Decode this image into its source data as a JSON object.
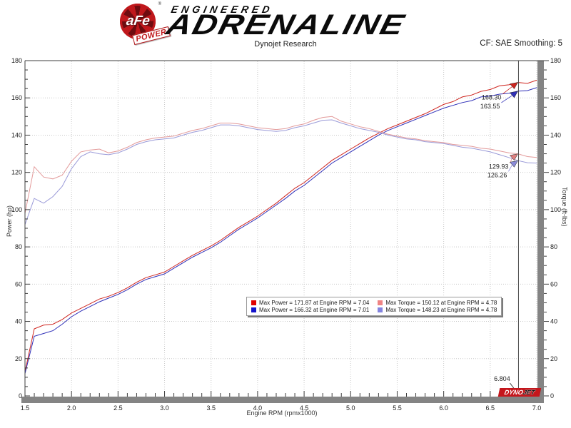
{
  "header": {
    "afe": "aFe",
    "power": "POWER",
    "reg": "®",
    "engineered": "ENGINEERED",
    "adrenaline": "ADRENALINE",
    "subtitle": "Dynojet Research",
    "cf_label": "CF: SAE Smoothing: 5"
  },
  "chart_data": {
    "type": "line",
    "xlabel": "Engine RPM (rpmx1000)",
    "ylabel_left": "Power (hp)",
    "ylabel_right": "Torque (ft-lbs)",
    "xlim": [
      1.5,
      7.0
    ],
    "ylim": [
      0,
      180
    ],
    "x_major_step": 0.5,
    "x_minor_step": 0.1,
    "y_major_step": 20,
    "y_minor_step": 5,
    "grid": "dotted",
    "legend": {
      "position": "bottom-center",
      "entries": [
        {
          "color": "#e00000",
          "label": "Max Power = 171.87 at Engine RPM = 7.04"
        },
        {
          "color": "#1414cc",
          "label": "Max Power = 166.32 at Engine RPM = 7.01"
        },
        {
          "color": "#ef8484",
          "label": "Max Torque = 150.12 at Engine RPM = 4.78"
        },
        {
          "color": "#8484e0",
          "label": "Max Torque = 148.23 at Engine RPM = 4.78"
        }
      ]
    },
    "series": [
      {
        "name": "power-red",
        "color": "#cf2620",
        "axis": "left",
        "points": [
          [
            1.5,
            13
          ],
          [
            1.6,
            36
          ],
          [
            1.7,
            38
          ],
          [
            1.8,
            38.5
          ],
          [
            1.9,
            41
          ],
          [
            2.0,
            44.5
          ],
          [
            2.1,
            47
          ],
          [
            2.2,
            49.5
          ],
          [
            2.3,
            52
          ],
          [
            2.4,
            53.5
          ],
          [
            2.5,
            55.5
          ],
          [
            2.6,
            58
          ],
          [
            2.7,
            61
          ],
          [
            2.8,
            63.5
          ],
          [
            2.9,
            65
          ],
          [
            3.0,
            66.5
          ],
          [
            3.1,
            69.5
          ],
          [
            3.2,
            72.5
          ],
          [
            3.3,
            75.5
          ],
          [
            3.4,
            78
          ],
          [
            3.5,
            80.5
          ],
          [
            3.6,
            83.5
          ],
          [
            3.7,
            87
          ],
          [
            3.8,
            90.5
          ],
          [
            3.9,
            93.5
          ],
          [
            4.0,
            96.5
          ],
          [
            4.1,
            100
          ],
          [
            4.2,
            103.5
          ],
          [
            4.3,
            107.5
          ],
          [
            4.4,
            111.5
          ],
          [
            4.5,
            114.5
          ],
          [
            4.6,
            118.5
          ],
          [
            4.7,
            122.5
          ],
          [
            4.8,
            126.5
          ],
          [
            4.9,
            129.5
          ],
          [
            5.0,
            132.5
          ],
          [
            5.1,
            135.5
          ],
          [
            5.2,
            138.5
          ],
          [
            5.3,
            141
          ],
          [
            5.4,
            143.5
          ],
          [
            5.5,
            145.5
          ],
          [
            5.6,
            147.5
          ],
          [
            5.7,
            149.5
          ],
          [
            5.8,
            151.5
          ],
          [
            5.9,
            154
          ],
          [
            6.0,
            156.5
          ],
          [
            6.1,
            158
          ],
          [
            6.2,
            160.5
          ],
          [
            6.3,
            161.5
          ],
          [
            6.4,
            163.5
          ],
          [
            6.5,
            164.5
          ],
          [
            6.6,
            166.5
          ],
          [
            6.7,
            167
          ],
          [
            6.8,
            168.3
          ],
          [
            6.9,
            167.8
          ],
          [
            7.0,
            169.5
          ]
        ]
      },
      {
        "name": "power-blue",
        "color": "#3030b8",
        "axis": "left",
        "points": [
          [
            1.5,
            12
          ],
          [
            1.6,
            32
          ],
          [
            1.7,
            33.5
          ],
          [
            1.8,
            35
          ],
          [
            1.9,
            38.5
          ],
          [
            2.0,
            42.5
          ],
          [
            2.1,
            45.5
          ],
          [
            2.2,
            48
          ],
          [
            2.3,
            50.5
          ],
          [
            2.4,
            52.5
          ],
          [
            2.5,
            54.5
          ],
          [
            2.6,
            57
          ],
          [
            2.7,
            60
          ],
          [
            2.8,
            62.5
          ],
          [
            2.9,
            64
          ],
          [
            3.0,
            65.5
          ],
          [
            3.1,
            68.5
          ],
          [
            3.2,
            71.5
          ],
          [
            3.3,
            74.5
          ],
          [
            3.4,
            77
          ],
          [
            3.5,
            79.5
          ],
          [
            3.6,
            82.5
          ],
          [
            3.7,
            86
          ],
          [
            3.8,
            89.5
          ],
          [
            3.9,
            92.5
          ],
          [
            4.0,
            95.5
          ],
          [
            4.1,
            99
          ],
          [
            4.2,
            102.5
          ],
          [
            4.3,
            106
          ],
          [
            4.4,
            110
          ],
          [
            4.5,
            113
          ],
          [
            4.6,
            117
          ],
          [
            4.7,
            121
          ],
          [
            4.8,
            125
          ],
          [
            4.9,
            128
          ],
          [
            5.0,
            131
          ],
          [
            5.1,
            134
          ],
          [
            5.2,
            137
          ],
          [
            5.3,
            140
          ],
          [
            5.4,
            142.5
          ],
          [
            5.5,
            144.5
          ],
          [
            5.6,
            146.5
          ],
          [
            5.7,
            148.5
          ],
          [
            5.8,
            150.5
          ],
          [
            5.9,
            152.5
          ],
          [
            6.0,
            154.5
          ],
          [
            6.1,
            156
          ],
          [
            6.2,
            157.5
          ],
          [
            6.3,
            158.5
          ],
          [
            6.4,
            160.5
          ],
          [
            6.5,
            161
          ],
          [
            6.6,
            162
          ],
          [
            6.7,
            162.5
          ],
          [
            6.8,
            163.6
          ],
          [
            6.9,
            163.9
          ],
          [
            7.0,
            165.5
          ]
        ]
      },
      {
        "name": "torque-pink",
        "color": "#e39a9a",
        "axis": "right",
        "points": [
          [
            1.5,
            98
          ],
          [
            1.6,
            123
          ],
          [
            1.7,
            117.5
          ],
          [
            1.8,
            116.5
          ],
          [
            1.9,
            118.5
          ],
          [
            2.0,
            126
          ],
          [
            2.1,
            131
          ],
          [
            2.2,
            132
          ],
          [
            2.3,
            132.5
          ],
          [
            2.4,
            130.5
          ],
          [
            2.5,
            131.5
          ],
          [
            2.6,
            133.5
          ],
          [
            2.7,
            136
          ],
          [
            2.8,
            137.5
          ],
          [
            2.9,
            138.5
          ],
          [
            3.0,
            139
          ],
          [
            3.1,
            139.5
          ],
          [
            3.2,
            141
          ],
          [
            3.3,
            142.5
          ],
          [
            3.4,
            143.5
          ],
          [
            3.5,
            145
          ],
          [
            3.6,
            146.5
          ],
          [
            3.7,
            146.5
          ],
          [
            3.8,
            146
          ],
          [
            3.9,
            145
          ],
          [
            4.0,
            144
          ],
          [
            4.1,
            143.5
          ],
          [
            4.2,
            143
          ],
          [
            4.3,
            143.5
          ],
          [
            4.4,
            145
          ],
          [
            4.5,
            146
          ],
          [
            4.6,
            148
          ],
          [
            4.7,
            149.5
          ],
          [
            4.8,
            150
          ],
          [
            4.9,
            147.5
          ],
          [
            5.0,
            146
          ],
          [
            5.1,
            144.5
          ],
          [
            5.2,
            143.5
          ],
          [
            5.3,
            142
          ],
          [
            5.4,
            140.5
          ],
          [
            5.5,
            139.5
          ],
          [
            5.6,
            138.5
          ],
          [
            5.7,
            138
          ],
          [
            5.8,
            137
          ],
          [
            5.9,
            136.5
          ],
          [
            6.0,
            136
          ],
          [
            6.1,
            135
          ],
          [
            6.2,
            134.5
          ],
          [
            6.3,
            134
          ],
          [
            6.4,
            133
          ],
          [
            6.5,
            132.5
          ],
          [
            6.6,
            131.5
          ],
          [
            6.7,
            130.5
          ],
          [
            6.8,
            129.9
          ],
          [
            6.9,
            128.5
          ],
          [
            7.0,
            128
          ]
        ]
      },
      {
        "name": "torque-lightblue",
        "color": "#9a9ad8",
        "axis": "right",
        "points": [
          [
            1.5,
            92
          ],
          [
            1.6,
            106
          ],
          [
            1.7,
            103.5
          ],
          [
            1.8,
            107
          ],
          [
            1.9,
            112.5
          ],
          [
            2.0,
            122
          ],
          [
            2.1,
            128.5
          ],
          [
            2.2,
            131
          ],
          [
            2.3,
            130
          ],
          [
            2.4,
            129.5
          ],
          [
            2.5,
            130.5
          ],
          [
            2.6,
            132.5
          ],
          [
            2.7,
            135
          ],
          [
            2.8,
            136.5
          ],
          [
            2.9,
            137.5
          ],
          [
            3.0,
            138
          ],
          [
            3.1,
            138.5
          ],
          [
            3.2,
            140
          ],
          [
            3.3,
            141.5
          ],
          [
            3.4,
            142.5
          ],
          [
            3.5,
            144
          ],
          [
            3.6,
            145.5
          ],
          [
            3.7,
            145.5
          ],
          [
            3.8,
            145
          ],
          [
            3.9,
            144
          ],
          [
            4.0,
            143
          ],
          [
            4.1,
            142.5
          ],
          [
            4.2,
            142
          ],
          [
            4.3,
            142.5
          ],
          [
            4.4,
            144
          ],
          [
            4.5,
            145
          ],
          [
            4.6,
            146.5
          ],
          [
            4.7,
            148
          ],
          [
            4.8,
            148.2
          ],
          [
            4.9,
            146.5
          ],
          [
            5.0,
            145
          ],
          [
            5.1,
            143.5
          ],
          [
            5.2,
            142.5
          ],
          [
            5.3,
            141.5
          ],
          [
            5.4,
            140
          ],
          [
            5.5,
            139
          ],
          [
            5.6,
            138
          ],
          [
            5.7,
            137.5
          ],
          [
            5.8,
            136.5
          ],
          [
            5.9,
            136
          ],
          [
            6.0,
            135.5
          ],
          [
            6.1,
            134.5
          ],
          [
            6.2,
            133.5
          ],
          [
            6.3,
            133
          ],
          [
            6.4,
            132
          ],
          [
            6.5,
            131
          ],
          [
            6.6,
            129.5
          ],
          [
            6.7,
            128
          ],
          [
            6.8,
            126.3
          ],
          [
            6.9,
            125.2
          ],
          [
            7.0,
            125
          ]
        ]
      }
    ],
    "cursor": {
      "rpm": 6.804,
      "label": "6.804",
      "markers": [
        {
          "series": "power-red",
          "value": 168.3,
          "label": "168.30",
          "color": "#cf2620"
        },
        {
          "series": "power-blue",
          "value": 163.55,
          "label": "163.55",
          "color": "#3030b8"
        },
        {
          "series": "torque-pink",
          "value": 129.93,
          "label": "129.93",
          "color": "#e08080"
        },
        {
          "series": "torque-lightblue",
          "value": 126.26,
          "label": "126.26",
          "color": "#8a8ad8"
        }
      ]
    },
    "dynojet": {
      "dyno": "DYNO",
      "jet": "JET"
    }
  }
}
